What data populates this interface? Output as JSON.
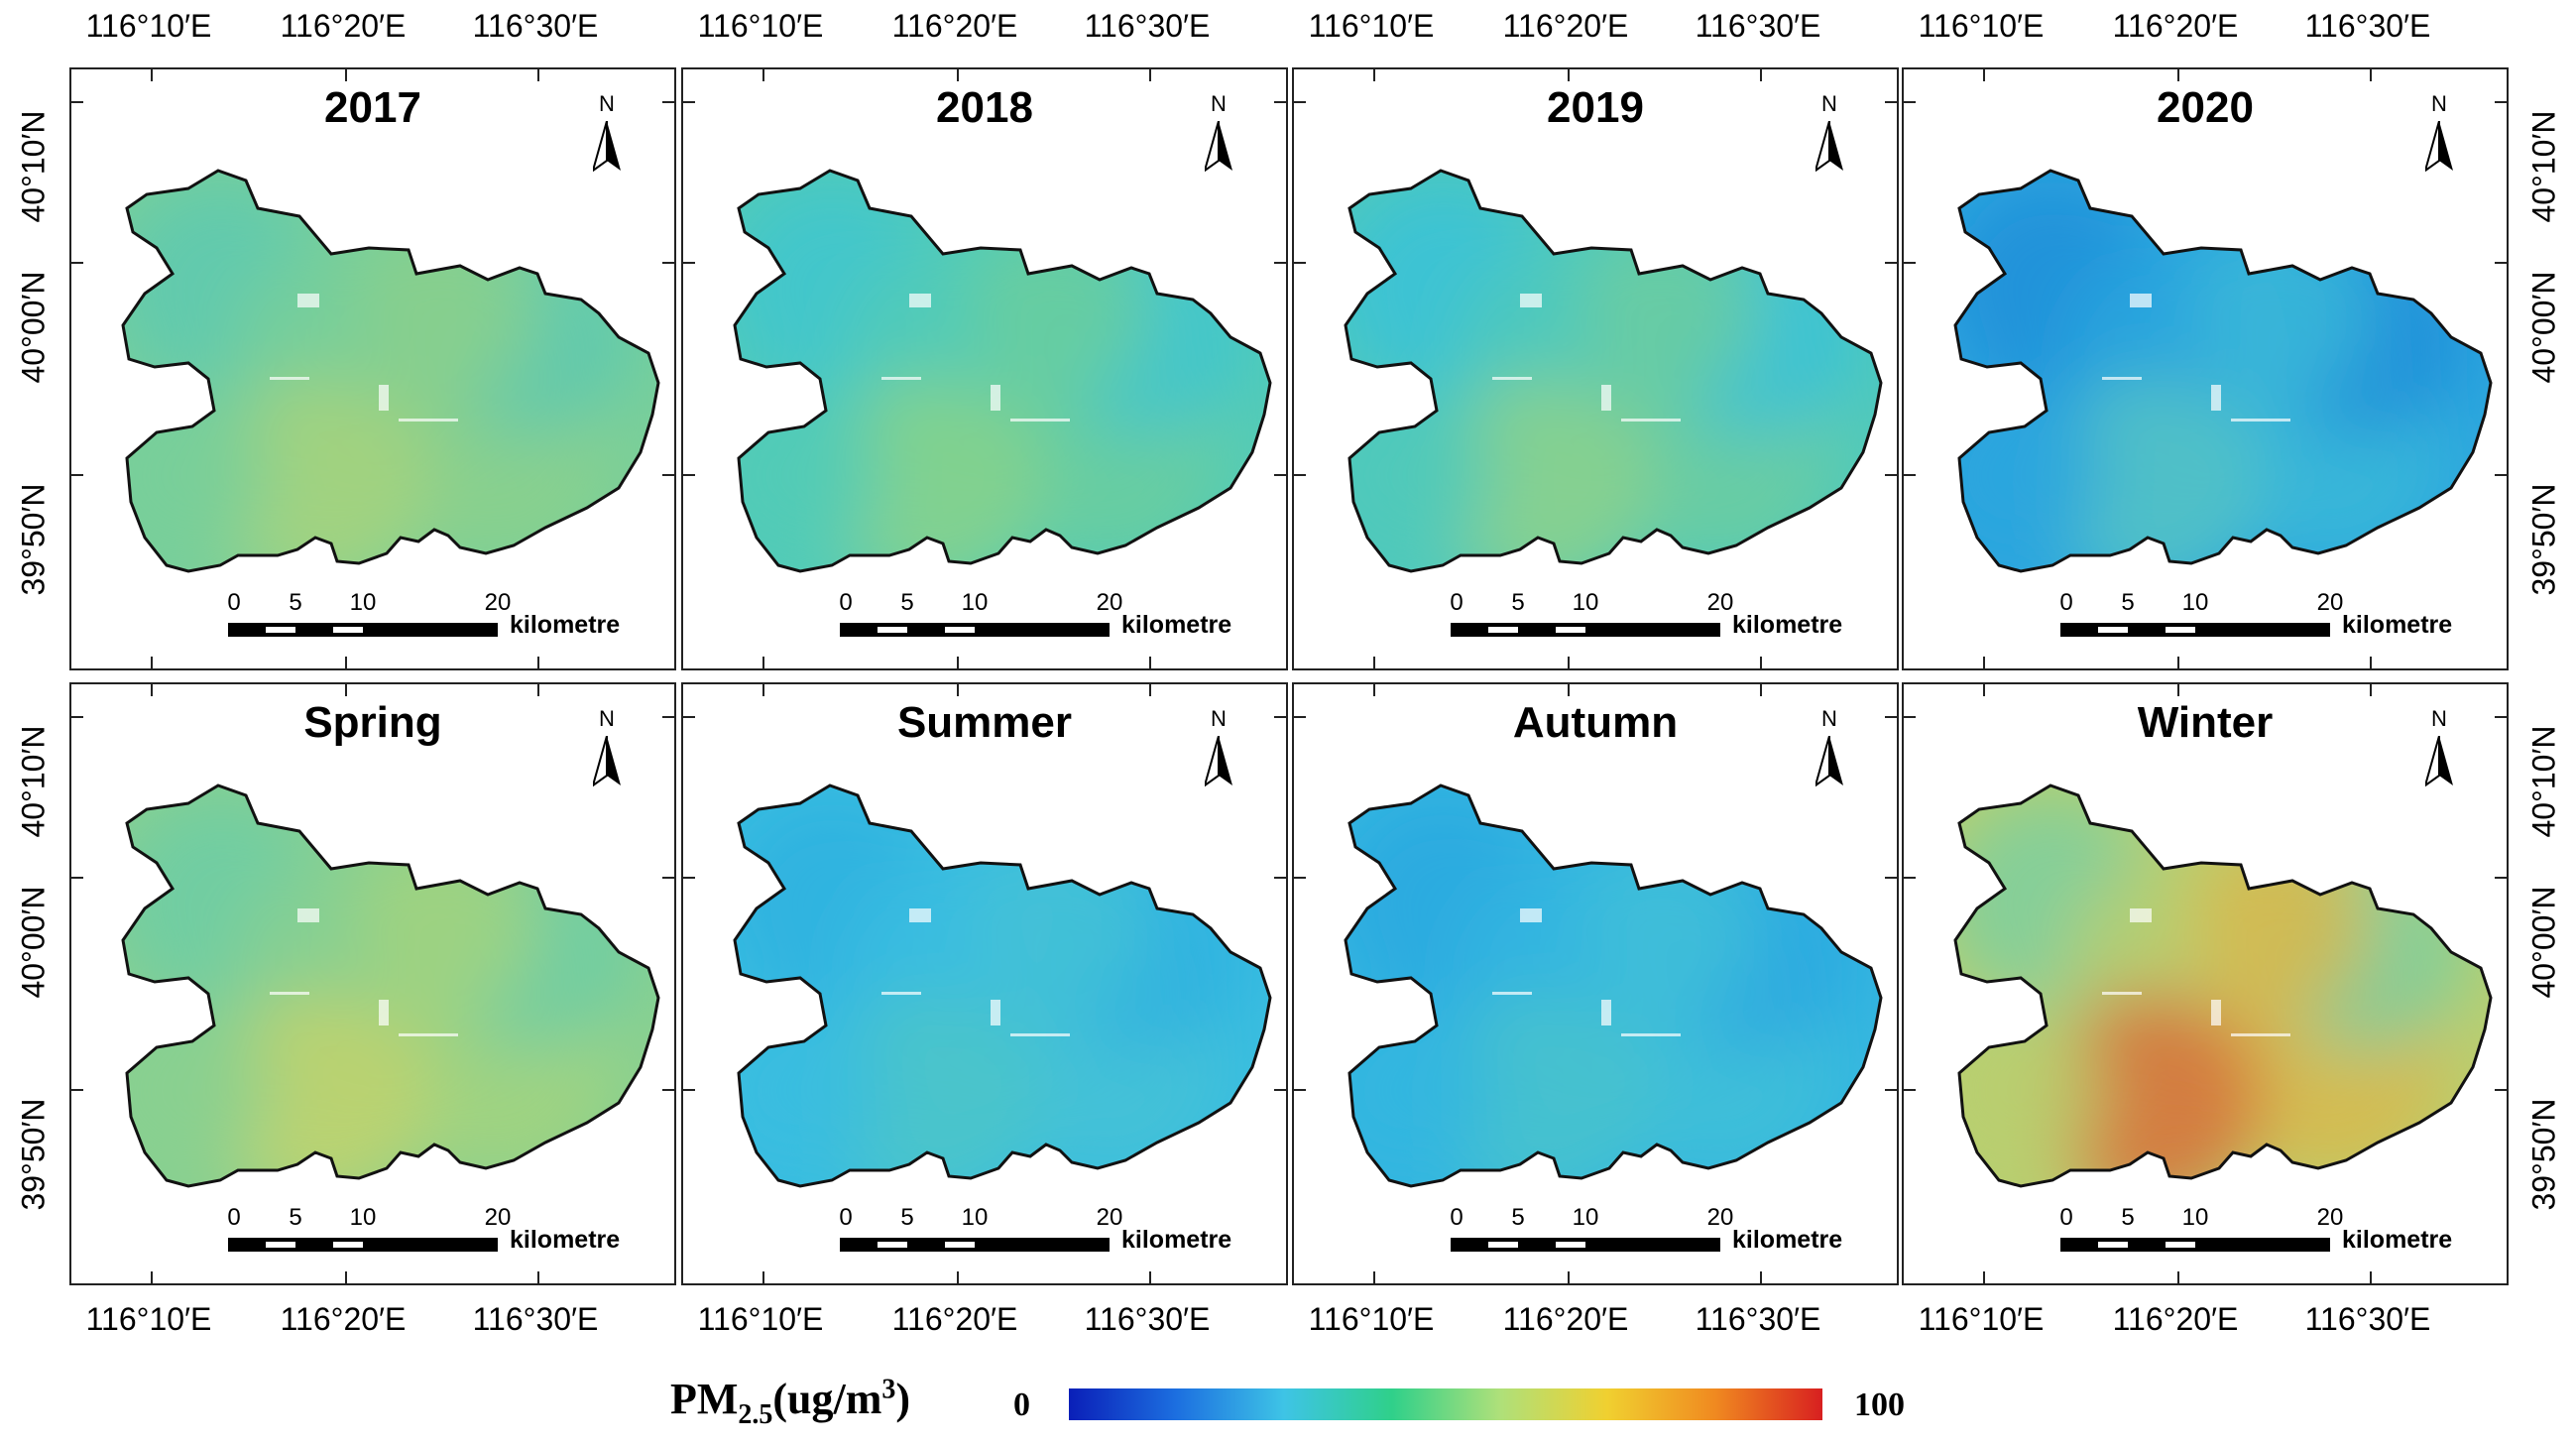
{
  "longitude_labels": [
    "116°10′E",
    "116°20′E",
    "116°30′E"
  ],
  "latitude_labels": [
    "40°10′N",
    "40°00′N",
    "39°50′N"
  ],
  "north_label": "N",
  "scale_bar": {
    "ticks": [
      "0",
      "5",
      "10",
      "20"
    ],
    "unit": "kilometre"
  },
  "panels": [
    {
      "title": "2017",
      "palette": [
        "#5ec9b0",
        "#78cf9a",
        "#8bd08c",
        "#a8d37c"
      ]
    },
    {
      "title": "2018",
      "palette": [
        "#3fc6cf",
        "#52cbb7",
        "#6bce9e",
        "#8ad28a"
      ]
    },
    {
      "title": "2019",
      "palette": [
        "#38c2d8",
        "#4fc9bb",
        "#6ccda0",
        "#8ed18a"
      ]
    },
    {
      "title": "2020",
      "palette": [
        "#1f8fd9",
        "#2ba6de",
        "#3bb8d8",
        "#56c4c4"
      ]
    },
    {
      "title": "Spring",
      "palette": [
        "#6ccca6",
        "#88d090",
        "#a2d47f",
        "#c2d36c"
      ]
    },
    {
      "title": "Summer",
      "palette": [
        "#2fb2e0",
        "#38bde0",
        "#44c2d6",
        "#4cc6c8"
      ]
    },
    {
      "title": "Autumn",
      "palette": [
        "#2aa9e0",
        "#33b6e0",
        "#3fbfd8",
        "#49c3cc"
      ]
    },
    {
      "title": "Winter",
      "palette": [
        "#7ccfa0",
        "#b8cf70",
        "#d8b84e",
        "#d8703a"
      ]
    }
  ],
  "legend": {
    "variable": "PM",
    "subscript": "2.5",
    "unit": "(ug/m",
    "unit_sup": "3",
    "unit_close": ")",
    "min": "0",
    "max": "100",
    "colors": [
      "#0a1fb8",
      "#1c6fe0",
      "#3ec4e6",
      "#2fd08a",
      "#aee07a",
      "#f0d030",
      "#f08a20",
      "#d82020"
    ]
  }
}
